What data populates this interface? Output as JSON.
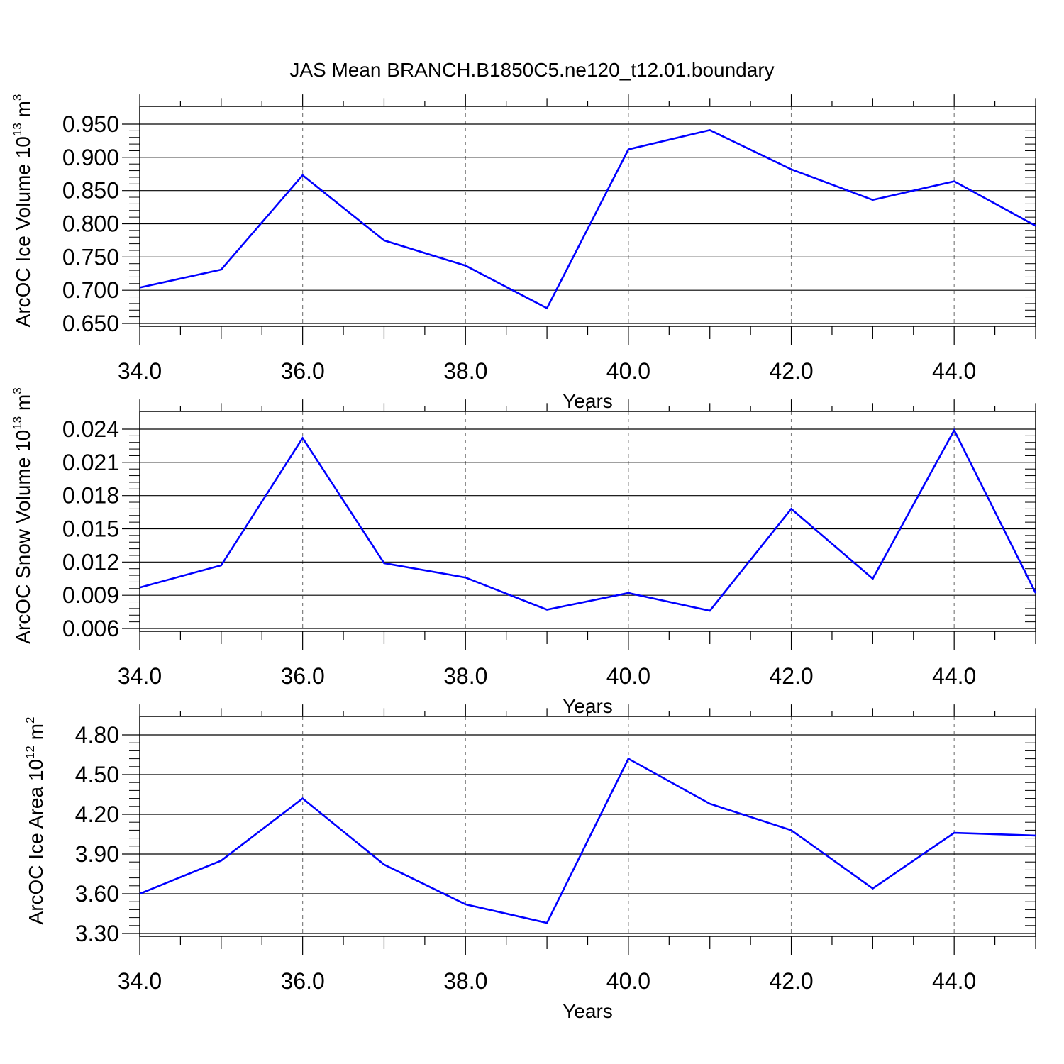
{
  "title": "JAS Mean BRANCH.B1850C5.ne120_t12.01.boundary",
  "colors": {
    "line": "#0000ff",
    "axes": "#000000",
    "grid": "#808080",
    "background": "#ffffff"
  },
  "chart_data": [
    {
      "type": "line",
      "xlabel": "Years",
      "ylabel": {
        "main": "ArcOC Ice Volume 10",
        "exp": "13",
        "unit": " m",
        "unit_exp": "3"
      },
      "x": [
        34,
        35,
        36,
        37,
        38,
        39,
        40,
        41,
        42,
        43,
        44,
        45
      ],
      "series": [
        {
          "values": [
            0.704,
            0.731,
            0.873,
            0.775,
            0.737,
            0.673,
            0.912,
            0.941,
            0.882,
            0.836,
            0.864,
            0.797
          ]
        }
      ],
      "xlim": [
        34,
        45
      ],
      "ylim": [
        0.65,
        0.95
      ],
      "xticks": [
        34,
        36,
        38,
        40,
        42,
        44
      ],
      "xtick_labels": [
        "34.0",
        "36.0",
        "38.0",
        "40.0",
        "42.0",
        "44.0"
      ],
      "yticks": [
        0.65,
        0.7,
        0.75,
        0.8,
        0.85,
        0.9,
        0.95
      ],
      "ytick_labels": [
        "0.650",
        "0.700",
        "0.750",
        "0.800",
        "0.850",
        "0.900",
        "0.950"
      ],
      "grid": "vertical dashed at major x ticks"
    },
    {
      "type": "line",
      "xlabel": "Years",
      "ylabel": {
        "main": "ArcOC Snow Volume 10",
        "exp": "13",
        "unit": " m",
        "unit_exp": "3"
      },
      "x": [
        34,
        35,
        36,
        37,
        38,
        39,
        40,
        41,
        42,
        43,
        44,
        45
      ],
      "series": [
        {
          "values": [
            0.0097,
            0.0117,
            0.0232,
            0.0119,
            0.0106,
            0.0077,
            0.0092,
            0.0076,
            0.0168,
            0.0105,
            0.0239,
            0.0092
          ]
        }
      ],
      "xlim": [
        34,
        45
      ],
      "ylim": [
        0.006,
        0.024
      ],
      "xticks": [
        34,
        36,
        38,
        40,
        42,
        44
      ],
      "xtick_labels": [
        "34.0",
        "36.0",
        "38.0",
        "40.0",
        "42.0",
        "44.0"
      ],
      "yticks": [
        0.006,
        0.009,
        0.012,
        0.015,
        0.018,
        0.021,
        0.024
      ],
      "ytick_labels": [
        "0.006",
        "0.009",
        "0.012",
        "0.015",
        "0.018",
        "0.021",
        "0.024"
      ],
      "grid": "vertical dashed at major x ticks"
    },
    {
      "type": "line",
      "xlabel": "Years",
      "ylabel": {
        "main": "ArcOC Ice Area 10",
        "exp": "12",
        "unit": " m",
        "unit_exp": "2"
      },
      "x": [
        34,
        35,
        36,
        37,
        38,
        39,
        40,
        41,
        42,
        43,
        44,
        45
      ],
      "series": [
        {
          "values": [
            3.6,
            3.85,
            4.32,
            3.82,
            3.52,
            3.38,
            4.62,
            4.28,
            4.08,
            3.64,
            4.06,
            4.04
          ]
        }
      ],
      "xlim": [
        34,
        45
      ],
      "ylim": [
        3.3,
        4.8
      ],
      "xticks": [
        34,
        36,
        38,
        40,
        42,
        44
      ],
      "xtick_labels": [
        "34.0",
        "36.0",
        "38.0",
        "40.0",
        "42.0",
        "44.0"
      ],
      "yticks": [
        3.3,
        3.6,
        3.9,
        4.2,
        4.5,
        4.8
      ],
      "ytick_labels": [
        "3.30",
        "3.60",
        "3.90",
        "4.20",
        "4.50",
        "4.80"
      ],
      "grid": "vertical dashed at major x ticks"
    }
  ]
}
